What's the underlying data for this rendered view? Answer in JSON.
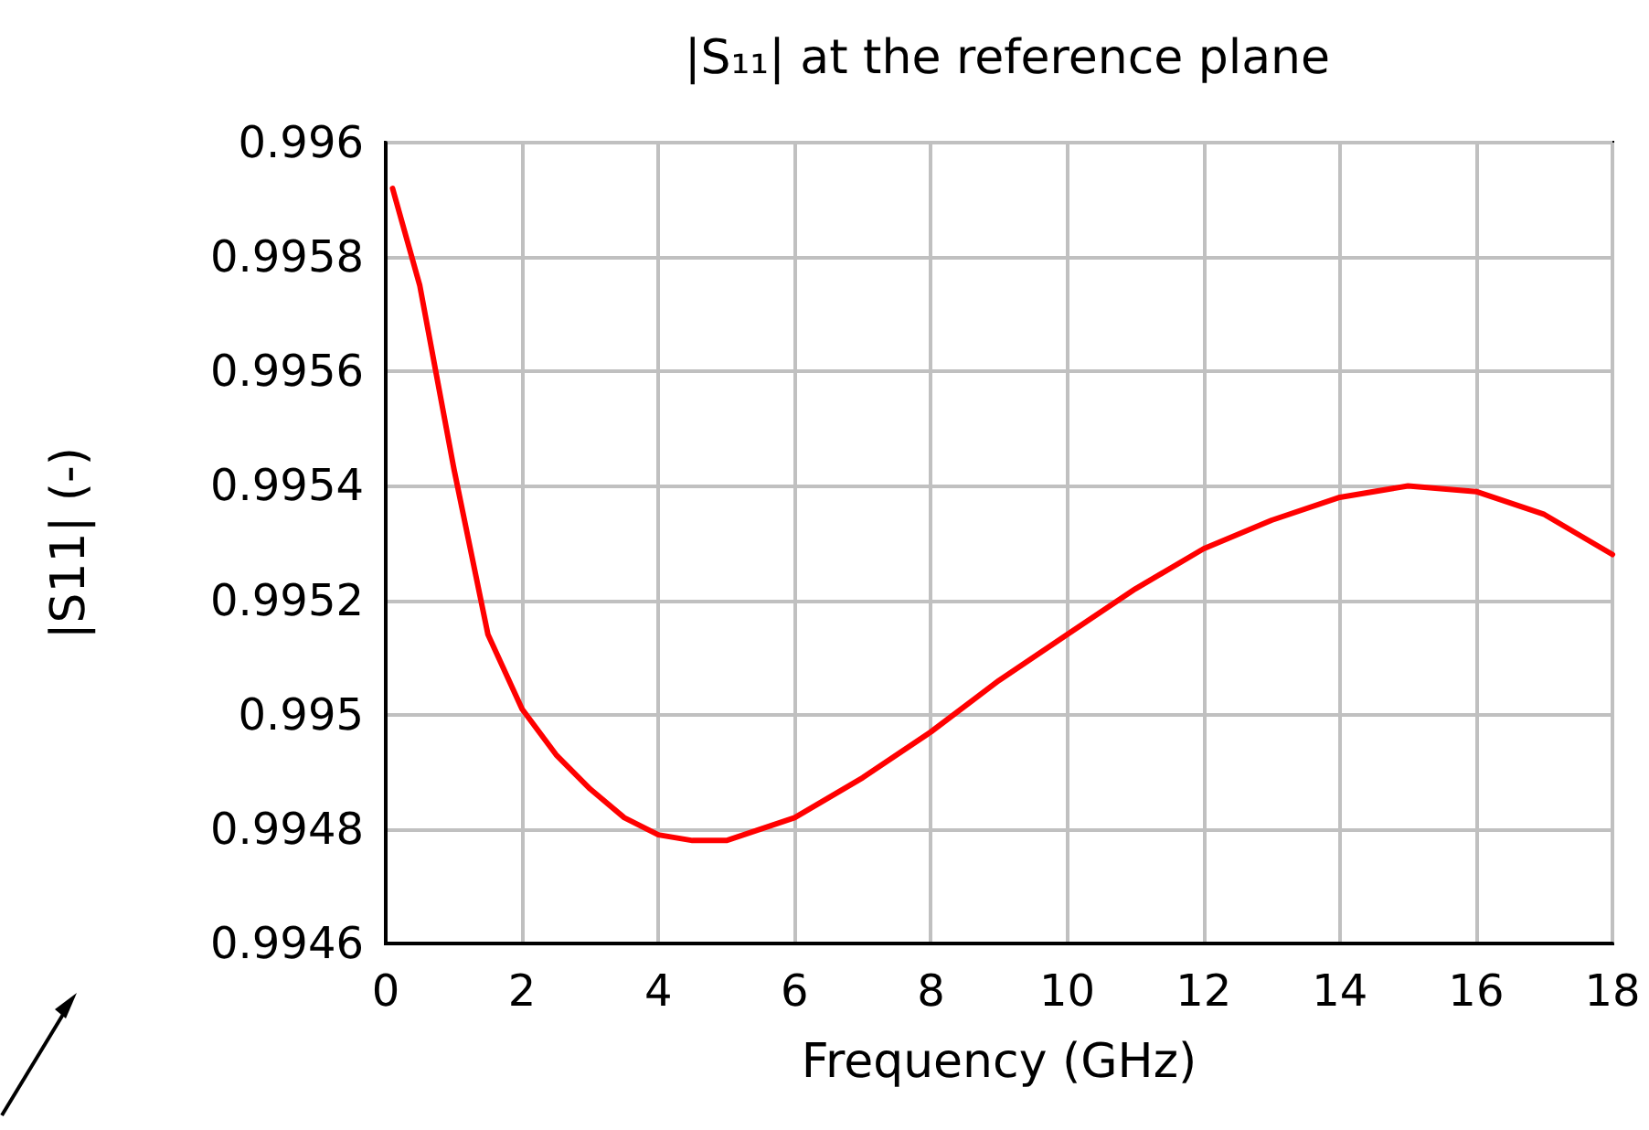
{
  "chart_data": {
    "type": "line",
    "title": "|S₁₁| at the reference plane",
    "xlabel": "Frequency (GHz)",
    "ylabel": "|S11| (-)",
    "x": [
      0.1,
      0.5,
      1,
      1.5,
      2,
      2.5,
      3,
      3.5,
      4,
      4.5,
      5,
      6,
      7,
      8,
      9,
      10,
      11,
      12,
      13,
      14,
      15,
      16,
      17,
      18
    ],
    "series": [
      {
        "color": "#ff0000",
        "values": [
          0.99592,
          0.99575,
          0.99543,
          0.99514,
          0.99501,
          0.99493,
          0.99487,
          0.99482,
          0.99479,
          0.99478,
          0.99478,
          0.99482,
          0.99489,
          0.99497,
          0.99506,
          0.99514,
          0.99522,
          0.99529,
          0.99534,
          0.99538,
          0.9954,
          0.99539,
          0.99535,
          0.99528
        ]
      }
    ],
    "xlim": [
      0,
      18
    ],
    "xticks": [
      0,
      2,
      4,
      6,
      8,
      10,
      12,
      14,
      16,
      18
    ],
    "ylim": [
      0.9946,
      0.996
    ],
    "yticks": [
      0.9946,
      0.9948,
      0.995,
      0.9952,
      0.9954,
      0.9956,
      0.9958,
      0.996
    ],
    "grid": true,
    "marker": "none",
    "line_style": "solid"
  }
}
